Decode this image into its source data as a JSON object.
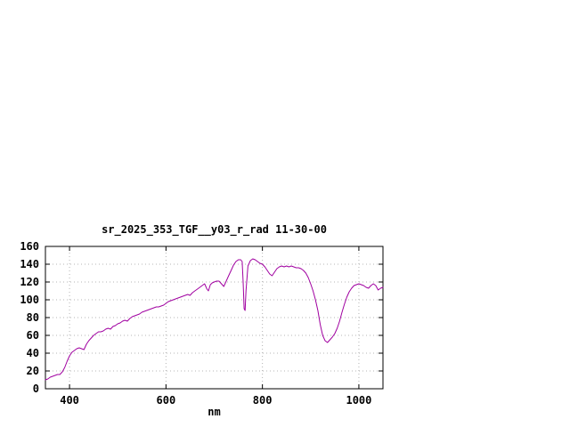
{
  "page": {
    "background": "#ffffff"
  },
  "chart_data": {
    "type": "line",
    "title": "sr_2025_353_TGF__y03_r_rad 11-30-00",
    "xlabel": "nm",
    "ylabel": "",
    "xlim": [
      350,
      1050
    ],
    "ylim": [
      0,
      160
    ],
    "xticks": [
      400,
      600,
      800,
      1000
    ],
    "yticks": [
      0,
      20,
      40,
      60,
      80,
      100,
      120,
      140,
      160
    ],
    "grid": true,
    "legend_position": "none",
    "line_color": "#a000a0",
    "grid_color": "#b4b4b4",
    "border_color": "#000000",
    "series": [
      {
        "name": "sr_2025_353_TGF__y03_r_rad",
        "points": [
          [
            350,
            10
          ],
          [
            355,
            11
          ],
          [
            360,
            13
          ],
          [
            365,
            14
          ],
          [
            370,
            15
          ],
          [
            375,
            16
          ],
          [
            380,
            16
          ],
          [
            385,
            19
          ],
          [
            390,
            24
          ],
          [
            395,
            31
          ],
          [
            400,
            37
          ],
          [
            405,
            41
          ],
          [
            410,
            43
          ],
          [
            415,
            45
          ],
          [
            420,
            46
          ],
          [
            425,
            45
          ],
          [
            430,
            44
          ],
          [
            435,
            50
          ],
          [
            440,
            54
          ],
          [
            445,
            57
          ],
          [
            450,
            60
          ],
          [
            455,
            62
          ],
          [
            460,
            64
          ],
          [
            465,
            64
          ],
          [
            470,
            65
          ],
          [
            475,
            67
          ],
          [
            480,
            68
          ],
          [
            485,
            67
          ],
          [
            490,
            70
          ],
          [
            495,
            71
          ],
          [
            500,
            73
          ],
          [
            505,
            74
          ],
          [
            510,
            76
          ],
          [
            515,
            77
          ],
          [
            520,
            76
          ],
          [
            525,
            79
          ],
          [
            530,
            81
          ],
          [
            535,
            82
          ],
          [
            540,
            83
          ],
          [
            545,
            84
          ],
          [
            550,
            86
          ],
          [
            555,
            87
          ],
          [
            560,
            88
          ],
          [
            565,
            89
          ],
          [
            570,
            90
          ],
          [
            575,
            91
          ],
          [
            580,
            92
          ],
          [
            585,
            92
          ],
          [
            590,
            93
          ],
          [
            595,
            94
          ],
          [
            600,
            96
          ],
          [
            605,
            98
          ],
          [
            610,
            99
          ],
          [
            615,
            100
          ],
          [
            620,
            101
          ],
          [
            625,
            102
          ],
          [
            630,
            103
          ],
          [
            635,
            104
          ],
          [
            640,
            105
          ],
          [
            645,
            106
          ],
          [
            650,
            105
          ],
          [
            655,
            108
          ],
          [
            660,
            110
          ],
          [
            665,
            112
          ],
          [
            670,
            114
          ],
          [
            675,
            116
          ],
          [
            680,
            118
          ],
          [
            685,
            112
          ],
          [
            688,
            110
          ],
          [
            692,
            117
          ],
          [
            696,
            119
          ],
          [
            700,
            120
          ],
          [
            705,
            121
          ],
          [
            710,
            121
          ],
          [
            715,
            118
          ],
          [
            720,
            115
          ],
          [
            725,
            121
          ],
          [
            730,
            127
          ],
          [
            735,
            133
          ],
          [
            740,
            139
          ],
          [
            745,
            143
          ],
          [
            750,
            145
          ],
          [
            755,
            145
          ],
          [
            758,
            143
          ],
          [
            760,
            120
          ],
          [
            762,
            90
          ],
          [
            764,
            88
          ],
          [
            766,
            110
          ],
          [
            770,
            138
          ],
          [
            775,
            144
          ],
          [
            780,
            146
          ],
          [
            785,
            145
          ],
          [
            790,
            143
          ],
          [
            795,
            141
          ],
          [
            800,
            140
          ],
          [
            805,
            137
          ],
          [
            810,
            133
          ],
          [
            815,
            129
          ],
          [
            820,
            127
          ],
          [
            825,
            131
          ],
          [
            830,
            135
          ],
          [
            835,
            137
          ],
          [
            840,
            138
          ],
          [
            845,
            137
          ],
          [
            850,
            138
          ],
          [
            855,
            137
          ],
          [
            860,
            138
          ],
          [
            865,
            137
          ],
          [
            870,
            136
          ],
          [
            875,
            136
          ],
          [
            880,
            135
          ],
          [
            885,
            133
          ],
          [
            890,
            130
          ],
          [
            895,
            125
          ],
          [
            900,
            118
          ],
          [
            905,
            110
          ],
          [
            910,
            100
          ],
          [
            915,
            88
          ],
          [
            920,
            72
          ],
          [
            925,
            60
          ],
          [
            930,
            54
          ],
          [
            935,
            52
          ],
          [
            940,
            55
          ],
          [
            945,
            58
          ],
          [
            950,
            62
          ],
          [
            955,
            68
          ],
          [
            960,
            76
          ],
          [
            965,
            86
          ],
          [
            970,
            95
          ],
          [
            975,
            103
          ],
          [
            980,
            109
          ],
          [
            985,
            113
          ],
          [
            990,
            116
          ],
          [
            995,
            117
          ],
          [
            1000,
            118
          ],
          [
            1005,
            117
          ],
          [
            1010,
            116
          ],
          [
            1015,
            114
          ],
          [
            1020,
            113
          ],
          [
            1025,
            116
          ],
          [
            1030,
            118
          ],
          [
            1035,
            116
          ],
          [
            1040,
            111
          ],
          [
            1045,
            113
          ],
          [
            1050,
            114
          ]
        ]
      }
    ]
  }
}
